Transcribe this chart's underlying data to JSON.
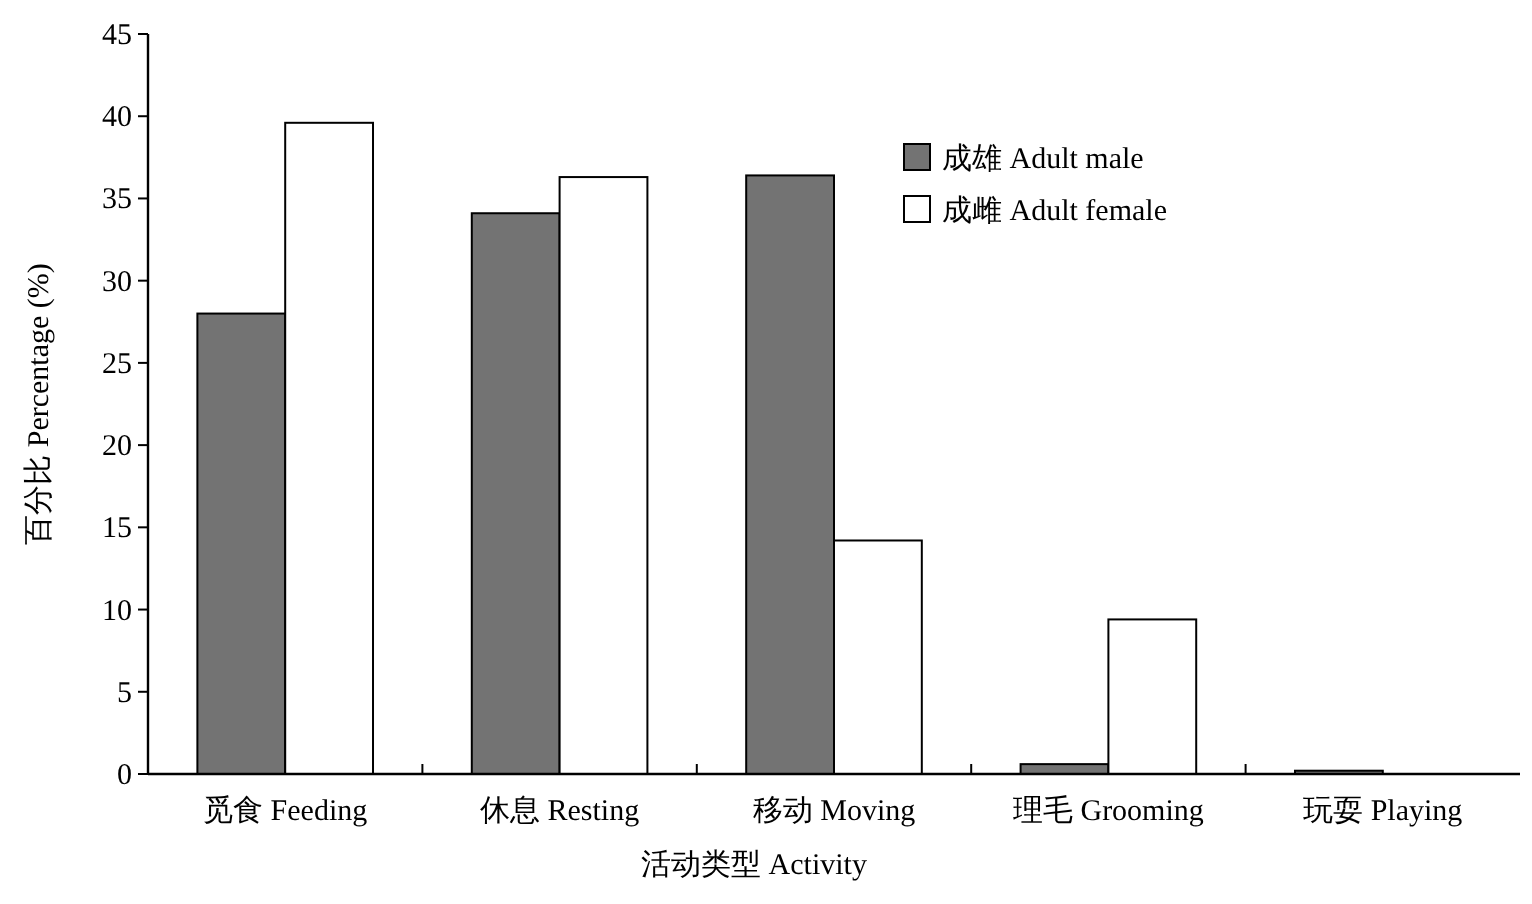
{
  "chart_data": {
    "type": "bar",
    "xlabel": "活动类型 Activity",
    "ylabel": "百分比 Percentage (%)",
    "categories": [
      "觅食 Feeding",
      "休息 Resting",
      "移动 Moving",
      "理毛 Grooming",
      "玩耍 Playing"
    ],
    "series": [
      {
        "name": "成雄 Adult male",
        "color": "#737373",
        "values": [
          28.0,
          34.1,
          36.4,
          0.6,
          0.2
        ]
      },
      {
        "name": "成雌 Adult female",
        "color": "#ffffff",
        "values": [
          39.6,
          36.3,
          14.2,
          9.4,
          0
        ]
      }
    ],
    "ylim": [
      0,
      45
    ],
    "yticks": [
      0,
      5,
      10,
      15,
      20,
      25,
      30,
      35,
      40,
      45
    ],
    "grid": false,
    "legend": "top right"
  }
}
